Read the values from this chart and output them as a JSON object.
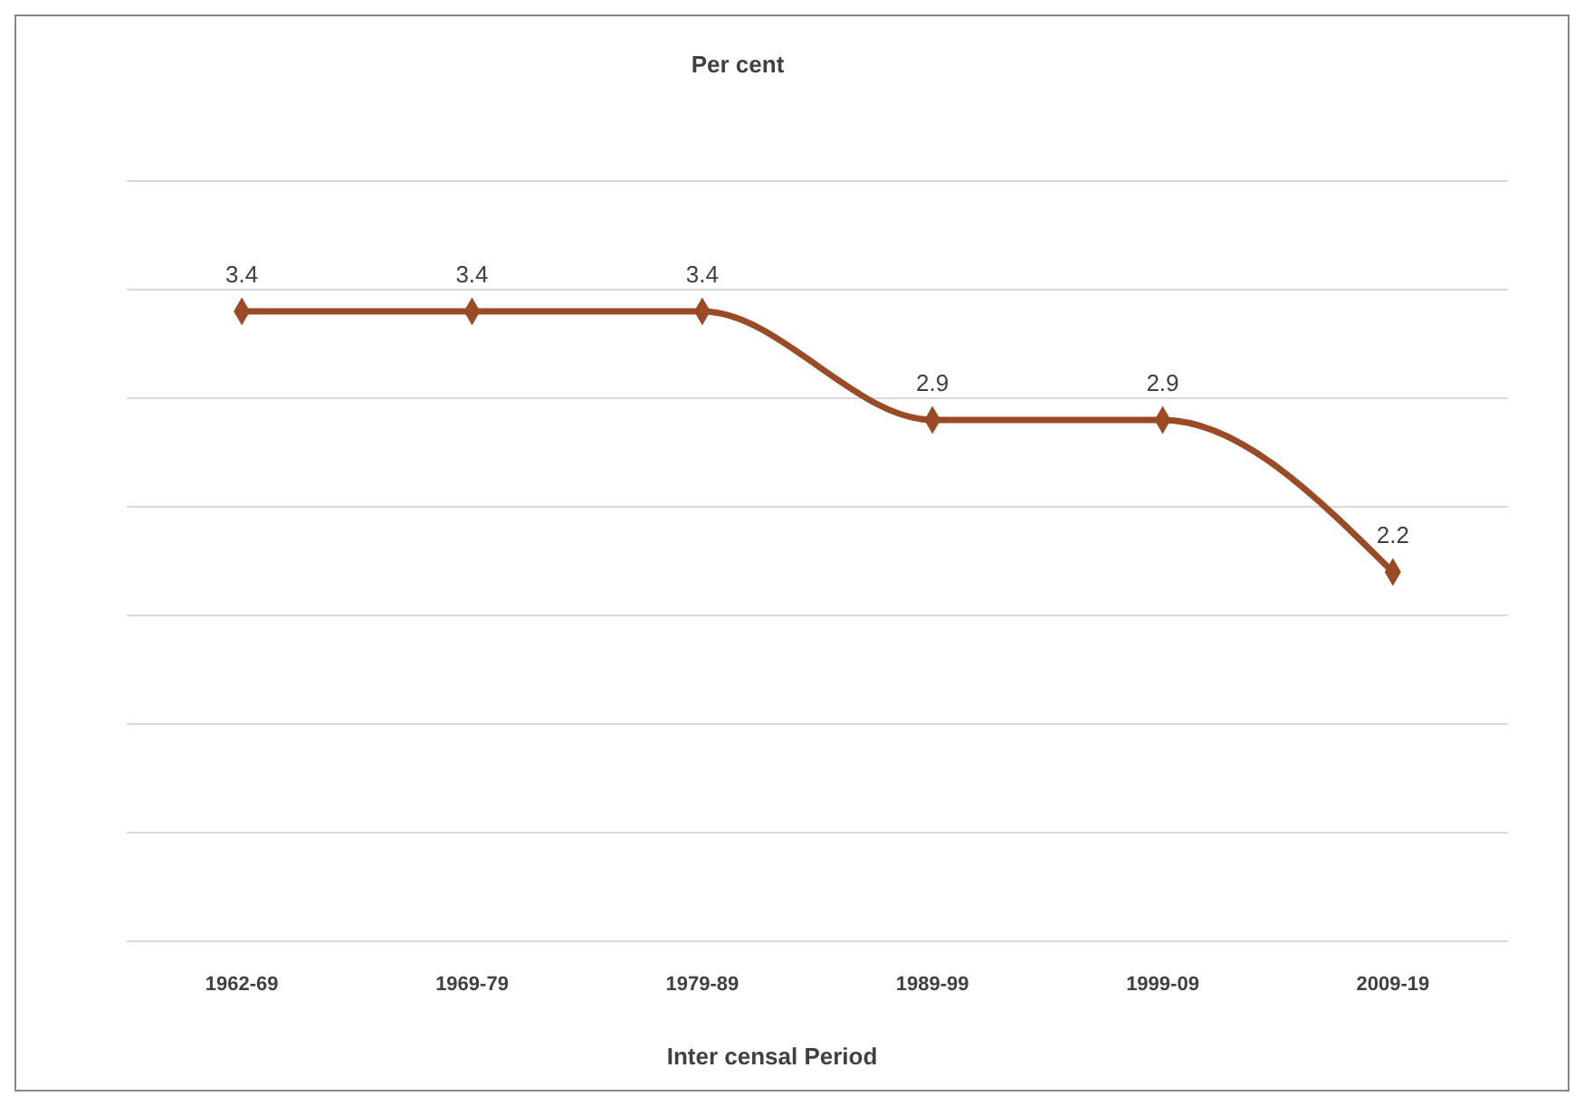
{
  "chart_data": {
    "type": "line",
    "title": "Per cent",
    "xlabel": "Inter censal Period",
    "categories": [
      "1962-69",
      "1969-79",
      "1979-89",
      "1989-99",
      "1999-09",
      "2009-19"
    ],
    "series": [
      {
        "color": "#9a4a24",
        "values": [
          3.4,
          3.4,
          3.4,
          2.9,
          2.9,
          2.2
        ]
      }
    ],
    "ylim": [
      0.5,
      4.0
    ],
    "yticks": [
      {
        "value": 0.5,
        "label": null
      },
      {
        "value": 1.0,
        "label": null
      },
      {
        "value": 1.5,
        "label": null
      },
      {
        "value": 2.0,
        "label": null
      },
      {
        "value": 2.5,
        "label": null
      },
      {
        "value": 3.0,
        "label": null
      },
      {
        "value": 3.5,
        "label": null
      },
      {
        "value": 4.0,
        "label": null
      }
    ],
    "grid": "y",
    "tick_labels": "x",
    "marker": "diamond",
    "line_style": "solid",
    "data_labels": true
  }
}
